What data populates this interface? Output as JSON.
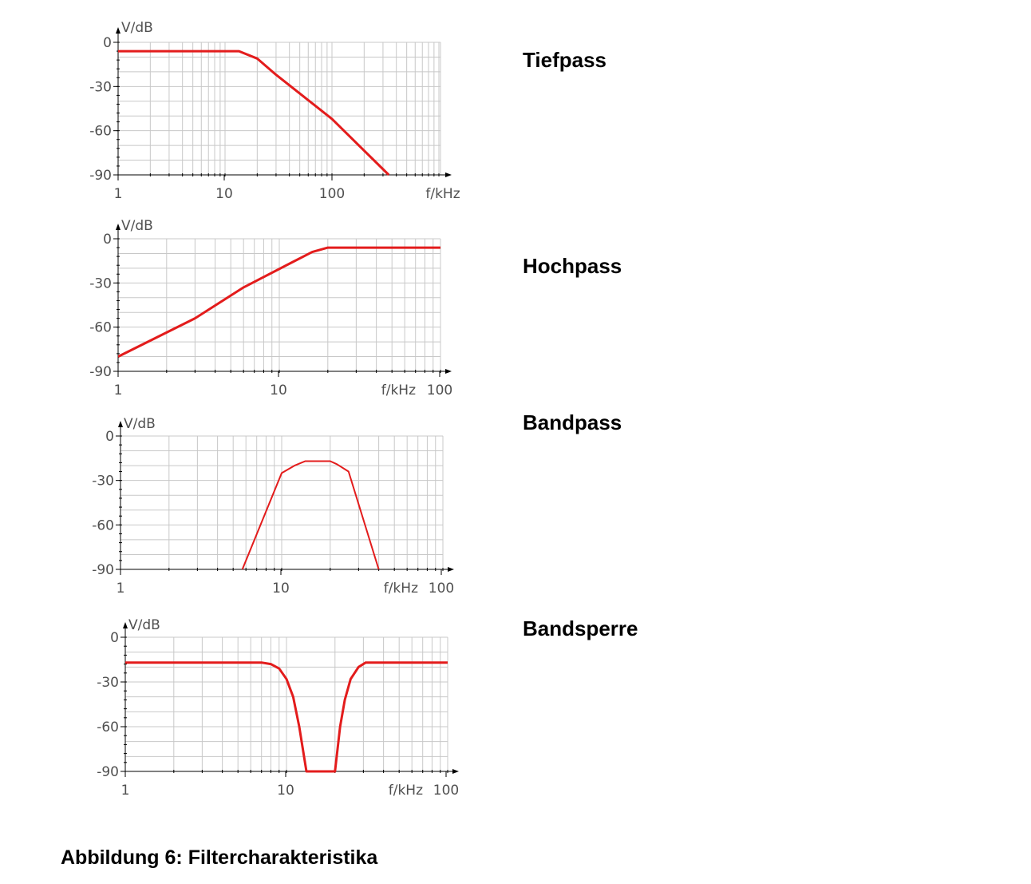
{
  "caption": "Abbildung 6: Filtercharakteristika",
  "colors": {
    "curve": "#e31c1c",
    "grid": "#c8c8c8",
    "axis": "#000000",
    "label": "#505050"
  },
  "chart_data": [
    {
      "type": "line",
      "title": "Tiefpass",
      "xlabel": "f/kHz",
      "ylabel": "V/dB",
      "xscale": "log",
      "xlim": [
        1,
        1000
      ],
      "ylim": [
        -90,
        0
      ],
      "xticks": [
        1,
        10,
        100
      ],
      "yticks": [
        0,
        -30,
        -60,
        -90
      ],
      "grid": true,
      "series": [
        {
          "name": "Tiefpass",
          "x": [
            1,
            13.5,
            20,
            30,
            100,
            340
          ],
          "y": [
            -6,
            -6,
            -11,
            -22,
            -52,
            -90
          ]
        }
      ]
    },
    {
      "type": "line",
      "title": "Hochpass",
      "xlabel": "f/kHz",
      "ylabel": "V/dB",
      "xscale": "log",
      "xlim": [
        1,
        100
      ],
      "ylim": [
        -90,
        0
      ],
      "xticks": [
        1,
        10,
        100
      ],
      "yticks": [
        0,
        -30,
        -60,
        -90
      ],
      "grid": true,
      "series": [
        {
          "name": "Hochpass",
          "x": [
            1,
            3,
            6,
            12,
            16,
            20,
            100
          ],
          "y": [
            -80,
            -54,
            -33,
            -16,
            -9,
            -6,
            -6
          ]
        }
      ]
    },
    {
      "type": "line",
      "title": "Bandpass",
      "xlabel": "f/kHz",
      "ylabel": "V/dB",
      "xscale": "log",
      "xlim": [
        1,
        100
      ],
      "ylim": [
        -90,
        0
      ],
      "xticks": [
        1,
        10,
        100
      ],
      "yticks": [
        0,
        -30,
        -60,
        -90
      ],
      "grid": true,
      "series": [
        {
          "name": "Bandpass",
          "x": [
            5.7,
            10,
            12,
            14,
            20,
            22,
            26,
            40
          ],
          "y": [
            -90,
            -25,
            -20,
            -17,
            -17,
            -19,
            -24,
            -90
          ]
        }
      ]
    },
    {
      "type": "line",
      "title": "Bandsperre",
      "xlabel": "f/kHz",
      "ylabel": "V/dB",
      "xscale": "log",
      "xlim": [
        1,
        100
      ],
      "ylim": [
        -90,
        0
      ],
      "xticks": [
        1,
        10,
        100
      ],
      "yticks": [
        0,
        -30,
        -60,
        -90
      ],
      "grid": true,
      "series": [
        {
          "name": "Bandsperre",
          "x": [
            1,
            7,
            8,
            9,
            10,
            11,
            12,
            13.3,
            20,
            21.5,
            23,
            25,
            28,
            31,
            100
          ],
          "y": [
            -17,
            -17,
            -18,
            -21,
            -28,
            -40,
            -60,
            -90,
            -90,
            -60,
            -42,
            -28,
            -20,
            -17,
            -17
          ]
        }
      ]
    }
  ]
}
